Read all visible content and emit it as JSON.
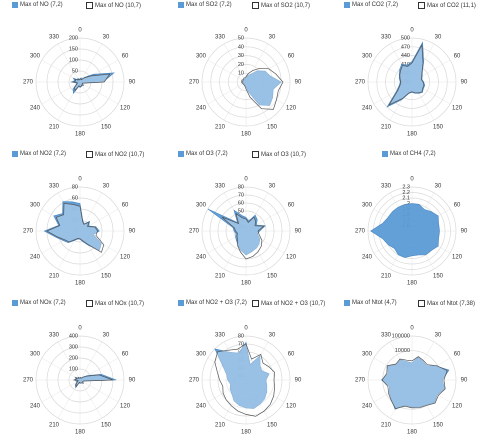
{
  "chart_data": [
    {
      "type": "radar",
      "directions": [
        "0",
        "30",
        "60",
        "90",
        "120",
        "150",
        "180",
        "210",
        "240",
        "270",
        "300",
        "330"
      ],
      "ticks": [
        "0",
        "50",
        "100",
        "150",
        "200"
      ],
      "rmax": 200,
      "series": [
        {
          "name": "Max of NO  (7,2)",
          "style": "fill",
          "values": [
            15,
            20,
            15,
            30,
            70,
            160,
            105,
            15,
            10,
            20,
            18,
            22,
            25,
            20,
            60,
            45,
            18,
            15,
            40,
            25,
            35,
            15,
            20,
            12
          ]
        },
        {
          "name": "Max of NO  (10,7)",
          "style": "open",
          "values": [
            12,
            15,
            12,
            25,
            55,
            140,
            110,
            20,
            12,
            22,
            15,
            20,
            20,
            18,
            45,
            35,
            15,
            12,
            30,
            20,
            25,
            12,
            15,
            10
          ]
        }
      ]
    },
    {
      "type": "radar",
      "directions": [
        "0",
        "30",
        "60",
        "90",
        "120",
        "150",
        "180",
        "210",
        "240",
        "270",
        "300",
        "330"
      ],
      "ticks": [
        "0",
        "10",
        "20",
        "30",
        "40",
        "50"
      ],
      "rmax": 50,
      "series": [
        {
          "name": "Max of SO2 (7,2)",
          "style": "fill",
          "values": [
            5,
            8,
            10,
            18,
            25,
            28,
            40,
            32,
            35,
            38,
            30,
            12,
            6,
            4,
            3,
            3,
            3,
            3,
            3,
            3,
            3,
            3,
            4,
            4
          ]
        },
        {
          "name": "Max of SO2 (10,7)",
          "style": "open",
          "values": [
            6,
            10,
            15,
            22,
            30,
            35,
            42,
            38,
            40,
            44,
            35,
            18,
            8,
            5,
            4,
            4,
            4,
            4,
            4,
            4,
            4,
            4,
            5,
            5
          ]
        }
      ]
    },
    {
      "type": "radar",
      "directions": [
        "0",
        "30",
        "60",
        "90",
        "120",
        "150",
        "180",
        "210",
        "240",
        "270",
        "300",
        "330"
      ],
      "ticks": [
        "350",
        "380",
        "410",
        "440",
        "470",
        "500"
      ],
      "rmin": 350,
      "rmax": 500,
      "series": [
        {
          "name": "Max of CO2 (7,2)",
          "style": "fill",
          "values": [
            420,
            490,
            430,
            400,
            390,
            385,
            390,
            395,
            395,
            400,
            395,
            390,
            385,
            390,
            420,
            470,
            410,
            395,
            390,
            395,
            400,
            410,
            420,
            410
          ]
        },
        {
          "name": "Max of CO2 (11,1)",
          "style": "open",
          "values": [
            415,
            480,
            425,
            398,
            388,
            383,
            388,
            392,
            392,
            398,
            392,
            388,
            383,
            388,
            415,
            460,
            405,
            392,
            388,
            392,
            398,
            405,
            415,
            405
          ]
        }
      ]
    },
    {
      "type": "radar",
      "directions": [
        "0",
        "30",
        "60",
        "90",
        "120",
        "150",
        "180",
        "210",
        "240",
        "270",
        "300",
        "330"
      ],
      "ticks": [
        "0",
        "20",
        "40",
        "60",
        "80"
      ],
      "rmax": 80,
      "series": [
        {
          "name": "Max of NO2  (7,2)",
          "style": "fill",
          "values": [
            50,
            20,
            15,
            25,
            18,
            30,
            35,
            25,
            45,
            50,
            30,
            20,
            15,
            15,
            20,
            30,
            35,
            45,
            65,
            40,
            55,
            45,
            62,
            55
          ]
        },
        {
          "name": "Max of NO2  (10,7)",
          "style": "open",
          "values": [
            45,
            18,
            14,
            22,
            16,
            28,
            32,
            30,
            50,
            55,
            28,
            18,
            14,
            14,
            18,
            28,
            32,
            42,
            60,
            38,
            50,
            42,
            58,
            50
          ]
        }
      ]
    },
    {
      "type": "radar",
      "directions": [
        "0",
        "30",
        "60",
        "90",
        "120",
        "150",
        "180",
        "210",
        "240",
        "270",
        "300",
        "330"
      ],
      "ticks": [
        "30",
        "40",
        "50",
        "60",
        "70",
        "80"
      ],
      "rmin": 25,
      "rmax": 80,
      "series": [
        {
          "name": "Max of O3  (7,2)",
          "style": "fill",
          "values": [
            42,
            38,
            48,
            45,
            40,
            50,
            42,
            40,
            45,
            48,
            50,
            52,
            55,
            50,
            45,
            42,
            40,
            38,
            40,
            42,
            80,
            40,
            55,
            45
          ]
        },
        {
          "name": "Max of O3  (10,7)",
          "style": "open",
          "values": [
            40,
            36,
            45,
            42,
            38,
            48,
            40,
            42,
            48,
            52,
            55,
            58,
            60,
            52,
            46,
            40,
            38,
            36,
            38,
            40,
            60,
            38,
            50,
            42
          ]
        }
      ]
    },
    {
      "type": "radar",
      "directions": [
        "0",
        "30",
        "60",
        "90",
        "120",
        "150",
        "180",
        "210",
        "240",
        "270",
        "300",
        "330"
      ],
      "ticks": [
        "1.6",
        "1.7",
        "1.8",
        "1.9",
        "2",
        "2.1",
        "2.2",
        "2.3"
      ],
      "rmin": 1.5,
      "rmax": 2.3,
      "series": [
        {
          "name": "Max of CH4 (7,2)",
          "style": "fill",
          "values": [
            2.0,
            2.0,
            1.95,
            2.0,
            2.05,
            2.0,
            2.0,
            2.0,
            2.05,
            2.0,
            2.0,
            1.95,
            1.95,
            2.0,
            2.0,
            1.95,
            2.0,
            2.05,
            2.25,
            2.05,
            2.0,
            2.0,
            2.0,
            2.0
          ]
        }
      ]
    },
    {
      "type": "radar",
      "directions": [
        "0",
        "30",
        "60",
        "90",
        "120",
        "150",
        "180",
        "210",
        "240",
        "270",
        "300",
        "330"
      ],
      "ticks": [
        "0",
        "100",
        "200",
        "300",
        "400"
      ],
      "rmax": 400,
      "series": [
        {
          "name": "Max of NOx (7,2)",
          "style": "fill",
          "values": [
            20,
            25,
            20,
            40,
            80,
            200,
            330,
            30,
            25,
            40,
            30,
            30,
            30,
            25,
            80,
            60,
            30,
            20,
            60,
            35,
            50,
            25,
            30,
            20
          ]
        },
        {
          "name": "Max of NOx (10,7)",
          "style": "open",
          "values": [
            18,
            22,
            18,
            35,
            70,
            180,
            300,
            35,
            28,
            42,
            28,
            28,
            28,
            22,
            70,
            50,
            25,
            18,
            50,
            30,
            42,
            20,
            25,
            18
          ]
        }
      ]
    },
    {
      "type": "radar",
      "directions": [
        "0",
        "30",
        "60",
        "90",
        "120",
        "150",
        "180",
        "210",
        "240",
        "270",
        "300",
        "330"
      ],
      "ticks": [
        "30",
        "40",
        "50",
        "60",
        "70",
        "80"
      ],
      "rmin": 25,
      "rmax": 80,
      "series": [
        {
          "name": "Max of NO2 + O3 (7,2)",
          "style": "fill",
          "values": [
            72,
            45,
            60,
            50,
            48,
            55,
            50,
            52,
            55,
            58,
            60,
            62,
            60,
            58,
            55,
            50,
            48,
            45,
            48,
            50,
            58,
            80,
            65,
            60
          ]
        },
        {
          "name": "Max of NO2 + O3 (10,7)",
          "style": "open",
          "values": [
            70,
            52,
            62,
            55,
            58,
            62,
            60,
            62,
            65,
            68,
            70,
            72,
            68,
            65,
            62,
            60,
            58,
            55,
            58,
            62,
            70,
            75,
            68,
            65
          ]
        }
      ]
    },
    {
      "type": "radar",
      "directions": [
        "0",
        "30",
        "60",
        "90",
        "120",
        "150",
        "180",
        "210",
        "240",
        "270",
        "300",
        "330"
      ],
      "ticks": [
        "1000",
        "10000",
        "100000"
      ],
      "scale": "log",
      "rmin": 100,
      "rmax": 100000,
      "series": [
        {
          "name": "Max of Ntot (4,7)",
          "style": "fill",
          "values": [
            1500,
            4000,
            3000,
            2500,
            8000,
            40000,
            12000,
            20000,
            10000,
            15000,
            9000,
            8000,
            7000,
            6000,
            20000,
            9000,
            6000,
            4000,
            12000,
            5000,
            8000,
            3000,
            4000,
            2000
          ]
        },
        {
          "name": "Max of Ntot (7,38)",
          "style": "open",
          "values": [
            2000,
            4500,
            3500,
            3000,
            9000,
            30000,
            15000,
            22000,
            12000,
            17000,
            10000,
            9000,
            8000,
            7000,
            18000,
            10000,
            7000,
            5000,
            11000,
            6000,
            9000,
            3500,
            4500,
            2500
          ]
        }
      ]
    }
  ]
}
